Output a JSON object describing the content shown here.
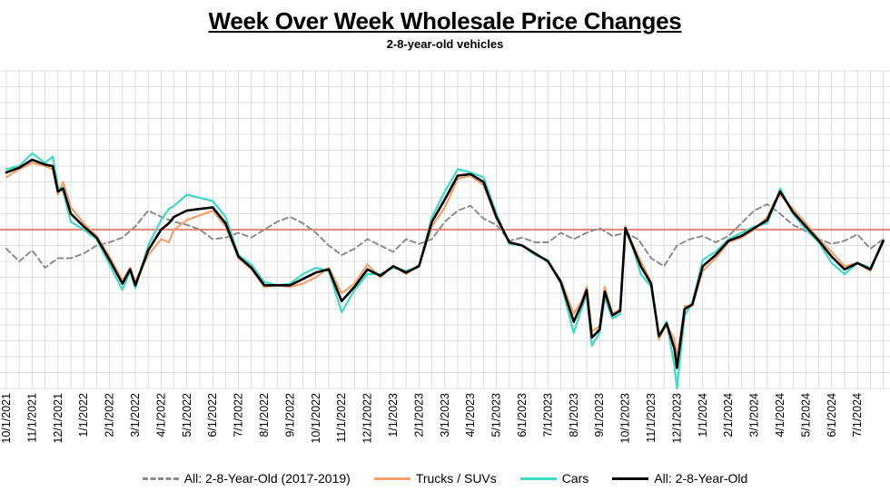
{
  "chart_data": {
    "type": "line",
    "title": "Week Over Week Wholesale Price Changes",
    "subtitle": "2-8-year-old vehicles",
    "x_labels": [
      "10/1/2021",
      "11/1/2021",
      "12/1/2021",
      "1/1/2022",
      "2/1/2022",
      "3/1/2022",
      "4/1/2022",
      "5/1/2022",
      "6/1/2022",
      "7/1/2022",
      "8/1/2022",
      "9/1/2022",
      "10/1/2022",
      "11/1/2022",
      "12/1/2022",
      "1/1/2023",
      "2/1/2023",
      "3/1/2023",
      "4/1/2023",
      "5/1/2023",
      "6/1/2023",
      "7/1/2023",
      "8/1/2023",
      "9/1/2023",
      "10/1/2023",
      "11/1/2023",
      "12/1/2023",
      "1/1/2024",
      "2/1/2024",
      "3/1/2024",
      "4/1/2024",
      "5/1/2024",
      "6/1/2024",
      "7/1/2024"
    ],
    "ylim": [
      -10,
      10
    ],
    "zero_line": 0,
    "grid": true,
    "legend_position": "bottom",
    "series": [
      {
        "name": "All: 2-8-Year-Old (2017-2019)",
        "color": "#8c8c8c",
        "style": "dashed",
        "points": [
          [
            0,
            -1.2
          ],
          [
            0.5,
            -2.0
          ],
          [
            1,
            -1.3
          ],
          [
            1.5,
            -2.4
          ],
          [
            2,
            -1.8
          ],
          [
            2.5,
            -1.8
          ],
          [
            3,
            -1.5
          ],
          [
            3.5,
            -1.0
          ],
          [
            4,
            -0.8
          ],
          [
            4.5,
            -0.5
          ],
          [
            5,
            0.2
          ],
          [
            5.5,
            1.2
          ],
          [
            6,
            0.8
          ],
          [
            6.5,
            0.5
          ],
          [
            7,
            0.3
          ],
          [
            7.5,
            0.0
          ],
          [
            8,
            -0.6
          ],
          [
            8.5,
            -0.5
          ],
          [
            9,
            -0.2
          ],
          [
            9.5,
            -0.5
          ],
          [
            10,
            0.0
          ],
          [
            10.5,
            0.5
          ],
          [
            11,
            0.8
          ],
          [
            11.5,
            0.4
          ],
          [
            12,
            -0.2
          ],
          [
            12.5,
            -1.0
          ],
          [
            13,
            -1.6
          ],
          [
            13.5,
            -1.2
          ],
          [
            14,
            -0.6
          ],
          [
            14.5,
            -1.0
          ],
          [
            15,
            -1.4
          ],
          [
            15.5,
            -0.6
          ],
          [
            16,
            -0.9
          ],
          [
            16.5,
            -0.6
          ],
          [
            17,
            0.5
          ],
          [
            17.5,
            1.2
          ],
          [
            18,
            1.5
          ],
          [
            18.5,
            0.7
          ],
          [
            19,
            0.3
          ],
          [
            19.5,
            -0.7
          ],
          [
            20,
            -0.5
          ],
          [
            20.5,
            -0.8
          ],
          [
            21,
            -0.8
          ],
          [
            21.5,
            -0.2
          ],
          [
            22,
            -0.6
          ],
          [
            22.5,
            -0.2
          ],
          [
            23,
            0.1
          ],
          [
            23.5,
            -0.4
          ],
          [
            24,
            -0.2
          ],
          [
            24.5,
            -0.6
          ],
          [
            25,
            -1.8
          ],
          [
            25.5,
            -2.3
          ],
          [
            26,
            -1.0
          ],
          [
            26.5,
            -0.6
          ],
          [
            27,
            -0.4
          ],
          [
            27.5,
            -0.8
          ],
          [
            28,
            -0.4
          ],
          [
            28.5,
            0.4
          ],
          [
            29,
            1.2
          ],
          [
            29.5,
            1.6
          ],
          [
            30,
            1.0
          ],
          [
            30.5,
            0.3
          ],
          [
            31,
            -0.1
          ],
          [
            31.5,
            -0.6
          ],
          [
            32,
            -0.9
          ],
          [
            32.5,
            -0.7
          ],
          [
            33,
            -0.3
          ],
          [
            33.5,
            -1.2
          ],
          [
            34,
            -0.6
          ]
        ]
      },
      {
        "name": "Trucks / SUVs",
        "color": "#f4a06b",
        "style": "solid",
        "points": [
          [
            0,
            3.3
          ],
          [
            0.5,
            3.8
          ],
          [
            1,
            4.2
          ],
          [
            1.5,
            4.0
          ],
          [
            1.8,
            3.8
          ],
          [
            2,
            2.2
          ],
          [
            2.2,
            3.0
          ],
          [
            2.5,
            1.4
          ],
          [
            3,
            0.4
          ],
          [
            3.5,
            -0.4
          ],
          [
            4,
            -1.7
          ],
          [
            4.5,
            -3.2
          ],
          [
            4.8,
            -2.4
          ],
          [
            5,
            -3.3
          ],
          [
            5.5,
            -1.6
          ],
          [
            6,
            -0.6
          ],
          [
            6.3,
            -0.8
          ],
          [
            6.5,
            0.0
          ],
          [
            7,
            0.6
          ],
          [
            7.5,
            0.9
          ],
          [
            8,
            1.2
          ],
          [
            8.5,
            0.2
          ],
          [
            9,
            -1.8
          ],
          [
            9.5,
            -2.5
          ],
          [
            10,
            -3.6
          ],
          [
            10.5,
            -3.5
          ],
          [
            11,
            -3.6
          ],
          [
            11.5,
            -3.4
          ],
          [
            12,
            -3.0
          ],
          [
            12.5,
            -2.4
          ],
          [
            13,
            -4.0
          ],
          [
            13.5,
            -3.4
          ],
          [
            14,
            -2.2
          ],
          [
            14.5,
            -3.0
          ],
          [
            15,
            -2.3
          ],
          [
            15.5,
            -2.8
          ],
          [
            16,
            -2.2
          ],
          [
            16.5,
            0.2
          ],
          [
            17,
            1.4
          ],
          [
            17.5,
            3.2
          ],
          [
            18,
            3.4
          ],
          [
            18.5,
            2.8
          ],
          [
            19,
            0.7
          ],
          [
            19.5,
            -0.8
          ],
          [
            20,
            -1.0
          ],
          [
            20.5,
            -1.5
          ],
          [
            21,
            -2.0
          ],
          [
            21.5,
            -3.2
          ],
          [
            22,
            -5.3
          ],
          [
            22.3,
            -4.5
          ],
          [
            22.5,
            -3.6
          ],
          [
            22.7,
            -6.4
          ],
          [
            23,
            -6.1
          ],
          [
            23.2,
            -3.6
          ],
          [
            23.5,
            -5.3
          ],
          [
            23.8,
            -5.0
          ],
          [
            24,
            0.2
          ],
          [
            24.3,
            -1.0
          ],
          [
            24.6,
            -2.0
          ],
          [
            25,
            -3.3
          ],
          [
            25.3,
            -6.9
          ],
          [
            25.6,
            -6.0
          ],
          [
            25.9,
            -6.9
          ],
          [
            26,
            -8.1
          ],
          [
            26.3,
            -4.8
          ],
          [
            26.6,
            -4.8
          ],
          [
            27,
            -2.6
          ],
          [
            27.5,
            -1.8
          ],
          [
            28,
            -0.8
          ],
          [
            28.5,
            -0.5
          ],
          [
            29,
            0.0
          ],
          [
            29.5,
            0.8
          ],
          [
            29.8,
            1.8
          ],
          [
            30,
            2.2
          ],
          [
            30.5,
            1.3
          ],
          [
            31,
            0.4
          ],
          [
            31.5,
            -0.6
          ],
          [
            32,
            -1.4
          ],
          [
            32.5,
            -2.3
          ],
          [
            33,
            -2.1
          ],
          [
            33.5,
            -2.6
          ],
          [
            34,
            -0.6
          ]
        ]
      },
      {
        "name": "Cars",
        "color": "#3ddbc5",
        "style": "solid",
        "points": [
          [
            0,
            3.8
          ],
          [
            0.5,
            4.0
          ],
          [
            1,
            4.8
          ],
          [
            1.5,
            4.2
          ],
          [
            1.8,
            4.6
          ],
          [
            2,
            2.7
          ],
          [
            2.2,
            2.4
          ],
          [
            2.5,
            0.5
          ],
          [
            3,
            0.0
          ],
          [
            3.5,
            -0.6
          ],
          [
            4,
            -2.2
          ],
          [
            4.5,
            -3.8
          ],
          [
            4.8,
            -2.6
          ],
          [
            5,
            -3.7
          ],
          [
            5.5,
            -1.0
          ],
          [
            6,
            0.6
          ],
          [
            6.3,
            1.3
          ],
          [
            6.5,
            1.5
          ],
          [
            7,
            2.2
          ],
          [
            7.5,
            2.0
          ],
          [
            8,
            1.8
          ],
          [
            8.5,
            0.8
          ],
          [
            9,
            -1.6
          ],
          [
            9.5,
            -2.2
          ],
          [
            10,
            -3.3
          ],
          [
            10.5,
            -3.5
          ],
          [
            11,
            -3.4
          ],
          [
            11.5,
            -2.8
          ],
          [
            12,
            -2.4
          ],
          [
            12.5,
            -2.6
          ],
          [
            13,
            -5.2
          ],
          [
            13.5,
            -3.8
          ],
          [
            14,
            -2.8
          ],
          [
            14.5,
            -2.8
          ],
          [
            15,
            -2.4
          ],
          [
            15.5,
            -2.6
          ],
          [
            16,
            -2.3
          ],
          [
            16.5,
            0.8
          ],
          [
            17,
            2.4
          ],
          [
            17.5,
            3.8
          ],
          [
            18,
            3.6
          ],
          [
            18.5,
            3.3
          ],
          [
            19,
            1.0
          ],
          [
            19.5,
            -0.9
          ],
          [
            20,
            -1.0
          ],
          [
            20.5,
            -1.6
          ],
          [
            21,
            -1.9
          ],
          [
            21.5,
            -3.4
          ],
          [
            22,
            -6.5
          ],
          [
            22.3,
            -5.0
          ],
          [
            22.5,
            -4.1
          ],
          [
            22.7,
            -7.3
          ],
          [
            23,
            -6.5
          ],
          [
            23.2,
            -4.3
          ],
          [
            23.5,
            -5.6
          ],
          [
            23.8,
            -5.3
          ],
          [
            24,
            0.0
          ],
          [
            24.3,
            -1.2
          ],
          [
            24.6,
            -2.8
          ],
          [
            25,
            -3.6
          ],
          [
            25.3,
            -6.7
          ],
          [
            25.6,
            -5.8
          ],
          [
            25.9,
            -8.6
          ],
          [
            26,
            -10.0
          ],
          [
            26.3,
            -5.4
          ],
          [
            26.6,
            -4.6
          ],
          [
            27,
            -1.9
          ],
          [
            27.5,
            -1.4
          ],
          [
            28,
            -0.6
          ],
          [
            28.5,
            -0.2
          ],
          [
            29,
            0.2
          ],
          [
            29.5,
            0.4
          ],
          [
            29.8,
            1.6
          ],
          [
            30,
            2.6
          ],
          [
            30.5,
            1.0
          ],
          [
            31,
            0.0
          ],
          [
            31.5,
            -0.8
          ],
          [
            32,
            -2.1
          ],
          [
            32.5,
            -2.8
          ],
          [
            33,
            -2.1
          ],
          [
            33.5,
            -2.4
          ],
          [
            34,
            -0.8
          ]
        ]
      },
      {
        "name": "All: 2-8-Year-Old",
        "color": "#000000",
        "style": "solid",
        "points": [
          [
            0,
            3.6
          ],
          [
            0.5,
            3.9
          ],
          [
            1,
            4.4
          ],
          [
            1.5,
            4.1
          ],
          [
            1.8,
            4.0
          ],
          [
            2,
            2.4
          ],
          [
            2.2,
            2.6
          ],
          [
            2.5,
            1.0
          ],
          [
            3,
            0.2
          ],
          [
            3.5,
            -0.5
          ],
          [
            4,
            -1.9
          ],
          [
            4.5,
            -3.4
          ],
          [
            4.8,
            -2.5
          ],
          [
            5,
            -3.5
          ],
          [
            5.5,
            -1.3
          ],
          [
            6,
            0.0
          ],
          [
            6.3,
            0.4
          ],
          [
            6.5,
            0.8
          ],
          [
            7,
            1.2
          ],
          [
            7.5,
            1.3
          ],
          [
            8,
            1.4
          ],
          [
            8.5,
            0.4
          ],
          [
            9,
            -1.7
          ],
          [
            9.5,
            -2.4
          ],
          [
            10,
            -3.5
          ],
          [
            10.5,
            -3.5
          ],
          [
            11,
            -3.5
          ],
          [
            11.5,
            -3.1
          ],
          [
            12,
            -2.7
          ],
          [
            12.5,
            -2.5
          ],
          [
            13,
            -4.5
          ],
          [
            13.5,
            -3.6
          ],
          [
            14,
            -2.5
          ],
          [
            14.5,
            -2.9
          ],
          [
            15,
            -2.3
          ],
          [
            15.5,
            -2.7
          ],
          [
            16,
            -2.3
          ],
          [
            16.5,
            0.5
          ],
          [
            17,
            1.9
          ],
          [
            17.5,
            3.4
          ],
          [
            18,
            3.5
          ],
          [
            18.5,
            3.0
          ],
          [
            19,
            0.8
          ],
          [
            19.5,
            -0.8
          ],
          [
            20,
            -1.0
          ],
          [
            20.5,
            -1.5
          ],
          [
            21,
            -2.0
          ],
          [
            21.5,
            -3.3
          ],
          [
            22,
            -5.8
          ],
          [
            22.3,
            -4.7
          ],
          [
            22.5,
            -3.8
          ],
          [
            22.7,
            -6.8
          ],
          [
            23,
            -6.3
          ],
          [
            23.2,
            -3.9
          ],
          [
            23.5,
            -5.4
          ],
          [
            23.8,
            -5.1
          ],
          [
            24,
            0.1
          ],
          [
            24.3,
            -1.1
          ],
          [
            24.6,
            -2.3
          ],
          [
            25,
            -3.4
          ],
          [
            25.3,
            -6.7
          ],
          [
            25.6,
            -5.9
          ],
          [
            25.9,
            -7.5
          ],
          [
            26,
            -8.7
          ],
          [
            26.3,
            -5.0
          ],
          [
            26.6,
            -4.7
          ],
          [
            27,
            -2.3
          ],
          [
            27.5,
            -1.6
          ],
          [
            28,
            -0.7
          ],
          [
            28.5,
            -0.4
          ],
          [
            29,
            0.1
          ],
          [
            29.5,
            0.6
          ],
          [
            29.8,
            1.7
          ],
          [
            30,
            2.4
          ],
          [
            30.5,
            1.1
          ],
          [
            31,
            0.2
          ],
          [
            31.5,
            -0.7
          ],
          [
            32,
            -1.7
          ],
          [
            32.5,
            -2.5
          ],
          [
            33,
            -2.1
          ],
          [
            33.5,
            -2.5
          ],
          [
            34,
            -0.7
          ]
        ]
      }
    ]
  }
}
